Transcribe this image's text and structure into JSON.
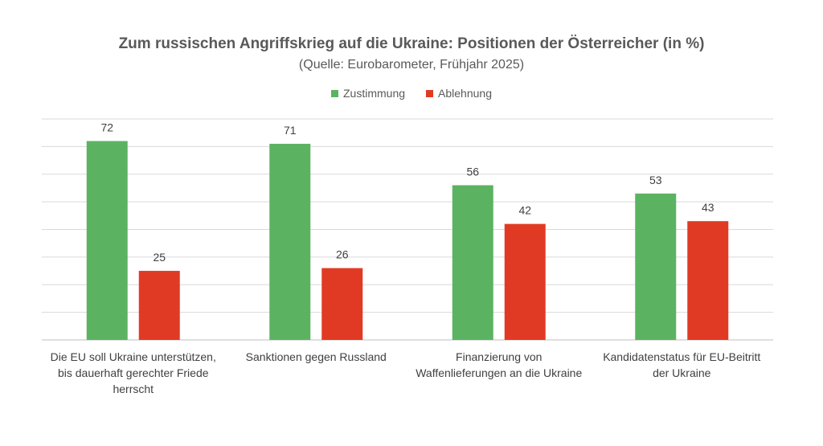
{
  "chart_data": {
    "type": "bar",
    "title": "Zum russischen Angriffskrieg auf die Ukraine: Positionen der Österreicher (in %)",
    "subtitle": "(Quelle: Eurobarometer, Frühjahr 2025)",
    "categories": [
      "Die EU soll Ukraine unterstützen,\nbis dauerhaft gerechter Friede\nherrscht",
      "Sanktionen gegen Russland",
      "Finanzierung von\nWaffenlieferungen an die Ukraine",
      "Kandidatenstatus für EU-Beitritt\nder Ukraine"
    ],
    "series": [
      {
        "name": "Zustimmung",
        "color": "#5bb361",
        "values": [
          72,
          71,
          56,
          53
        ]
      },
      {
        "name": "Ablehnung",
        "color": "#e13a24",
        "values": [
          25,
          26,
          42,
          43
        ]
      }
    ],
    "ylim": [
      0,
      80
    ],
    "grid": true,
    "legend": "top-center",
    "data_labels": true
  }
}
